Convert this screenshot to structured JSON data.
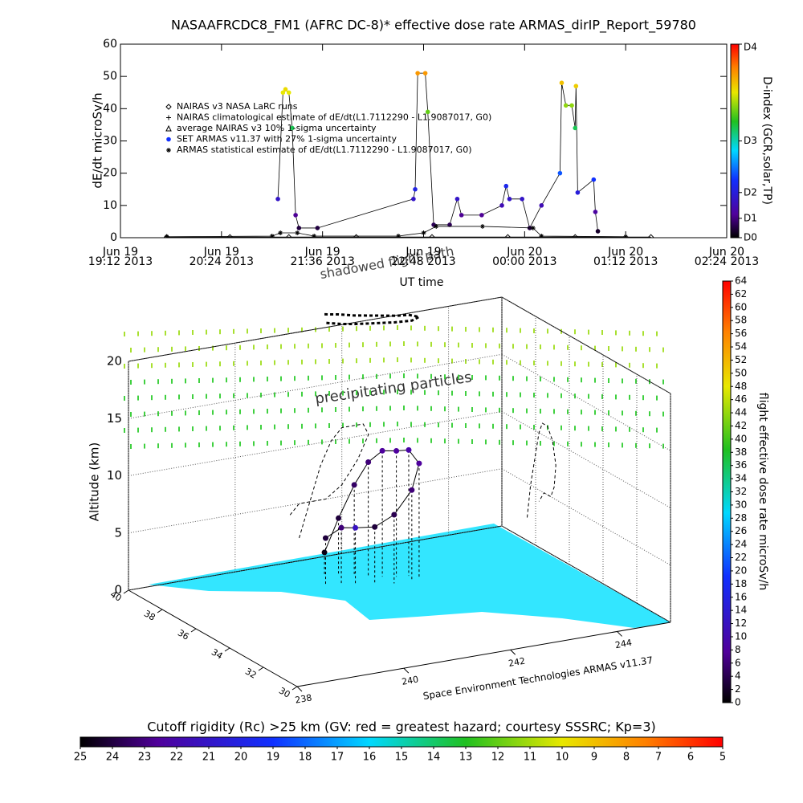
{
  "chart_data": [
    {
      "type": "line",
      "title": "NASAAFRCDC8_FM1 (AFRC DC-8)* effective dose rate ARMAS_dirIP_Report_59780",
      "ylabel": "dE/dt microSv/h",
      "xlabel": "UT time",
      "xlim": [
        19.2,
        26.4
      ],
      "xticks": [
        {
          "value": 19.2,
          "label": "Jun 19\n19:12 2013"
        },
        {
          "value": 20.4,
          "label": "Jun 19\n20:24 2013"
        },
        {
          "value": 21.6,
          "label": "Jun 19\n21:36 2013"
        },
        {
          "value": 22.8,
          "label": "Jun 19\n22:48 2013"
        },
        {
          "value": 24.0,
          "label": "Jun 20\n00:00 2013"
        },
        {
          "value": 25.2,
          "label": "Jun 20\n01:12 2013"
        },
        {
          "value": 26.4,
          "label": "Jun 20\n02:24 2013"
        }
      ],
      "ylim": [
        0,
        60
      ],
      "yticks": [
        0,
        10,
        20,
        30,
        40,
        50,
        60
      ],
      "series": [
        {
          "name": "NAIRAS v3 NASA LaRC runs",
          "marker": "diamond",
          "color": "#000000",
          "x": [
            19.75,
            20.5,
            21.2,
            22.0,
            22.9,
            23.8,
            24.6,
            25.5
          ],
          "values": [
            0.2,
            0.2,
            0.2,
            0.2,
            0.2,
            0.2,
            0.2,
            0.2
          ]
        },
        {
          "name": "NAIRAS climatological estimate of dE/dt(L1.7112290 - L1.9087017, G0)",
          "marker": "plus",
          "color": "#000000"
        },
        {
          "name": "average NAIRAS v3 10% 1-sigma uncertainty",
          "marker": "triangle",
          "color": "#000000"
        },
        {
          "name": "SET ARMAS v11.37 with 27% 1-sigma uncertainty",
          "marker": "circle",
          "color": "#1030ff",
          "color_by_value": true,
          "x": [
            21.07,
            21.13,
            21.16,
            21.2,
            21.24,
            21.28,
            21.32,
            21.54,
            22.68,
            22.7,
            22.73,
            22.82,
            22.85,
            22.92,
            23.11,
            23.2,
            23.25,
            23.49,
            23.73,
            23.78,
            23.82,
            23.97,
            24.06,
            24.2,
            24.42,
            24.44,
            24.49,
            24.56,
            24.6,
            24.61,
            24.63,
            24.82,
            24.84,
            24.87
          ],
          "values": [
            12,
            45,
            46,
            45,
            34,
            7,
            3,
            3,
            12,
            15,
            51,
            51,
            39,
            4,
            4,
            12,
            7,
            7,
            10,
            16,
            12,
            12,
            3,
            10,
            20,
            48,
            41,
            41,
            34,
            47,
            14,
            18,
            8,
            2
          ]
        },
        {
          "name": "ARMAS statistical estimate of dE/dt(L1.7112290 - L1.9087017, G0)",
          "marker": "star",
          "color": "#000000",
          "x": [
            19.75,
            21.0,
            21.1,
            21.3,
            21.5,
            22.5,
            22.8,
            22.95,
            23.5,
            24.1,
            24.2,
            25.2
          ],
          "values": [
            0.3,
            0.5,
            1.5,
            1.5,
            0.5,
            0.5,
            1.5,
            3.5,
            3.5,
            3.0,
            0.5,
            0.3
          ]
        }
      ],
      "colorbar": {
        "title": "D-index (GCR,solar,TP)",
        "lim": [
          0,
          60
        ],
        "ticks": [
          {
            "value": 0,
            "label": "D0"
          },
          {
            "value": 6,
            "label": "D1"
          },
          {
            "value": 14,
            "label": "D2"
          },
          {
            "value": 30,
            "label": "D3"
          },
          {
            "value": 60,
            "label": "D4"
          }
        ]
      }
    },
    {
      "type": "scatter3d",
      "annotations": [
        "shadowed flight path",
        "precipitating particles"
      ],
      "zlabel": "Altitude (km)",
      "credit": "Space Environment Technologies ARMAS v11.37",
      "xlim": [
        238,
        245
      ],
      "xticks": [
        238,
        240,
        242,
        244
      ],
      "ylim": [
        30,
        40
      ],
      "yticks": [
        30,
        32,
        34,
        36,
        38,
        40
      ],
      "zlim": [
        0,
        20
      ],
      "zticks": [
        0,
        5,
        10,
        15,
        20
      ],
      "series": [
        {
          "x": [
            241.2,
            241.4,
            241.6,
            241.8,
            242.0,
            242.2,
            242.4,
            242.5,
            242.3,
            242.0,
            241.7,
            241.4,
            241.2,
            241.0
          ],
          "y": [
            38.5,
            38.3,
            38.0,
            37.8,
            37.6,
            37.4,
            37.3,
            37.0,
            36.8,
            36.9,
            37.1,
            37.3,
            37.5,
            37.8
          ],
          "z": [
            2,
            5,
            8,
            10,
            11,
            11,
            11,
            10,
            8,
            6,
            5,
            5,
            5,
            4
          ],
          "values": [
            1,
            3,
            5,
            6,
            8,
            8,
            9,
            8,
            6,
            4,
            3,
            12,
            6,
            3
          ]
        }
      ],
      "colorbar": {
        "title": "flight effective dose rate microSv/h",
        "lim": [
          0,
          64
        ],
        "ticks": [
          0,
          2,
          4,
          6,
          8,
          10,
          12,
          14,
          16,
          18,
          20,
          22,
          24,
          26,
          28,
          30,
          32,
          34,
          36,
          38,
          40,
          42,
          44,
          46,
          48,
          50,
          52,
          54,
          56,
          58,
          60,
          62,
          64
        ]
      },
      "colorbar2": {
        "title": "Cutoff rigidity (Rc) >25 km (GV: red = greatest hazard; courtesy SSSRC; Kp=3)",
        "lim": [
          25,
          5
        ],
        "ticks": [
          25,
          24,
          23,
          22,
          21,
          20,
          19,
          18,
          17,
          16,
          15,
          14,
          13,
          12,
          11,
          10,
          9,
          8,
          7,
          6,
          5
        ]
      }
    }
  ]
}
